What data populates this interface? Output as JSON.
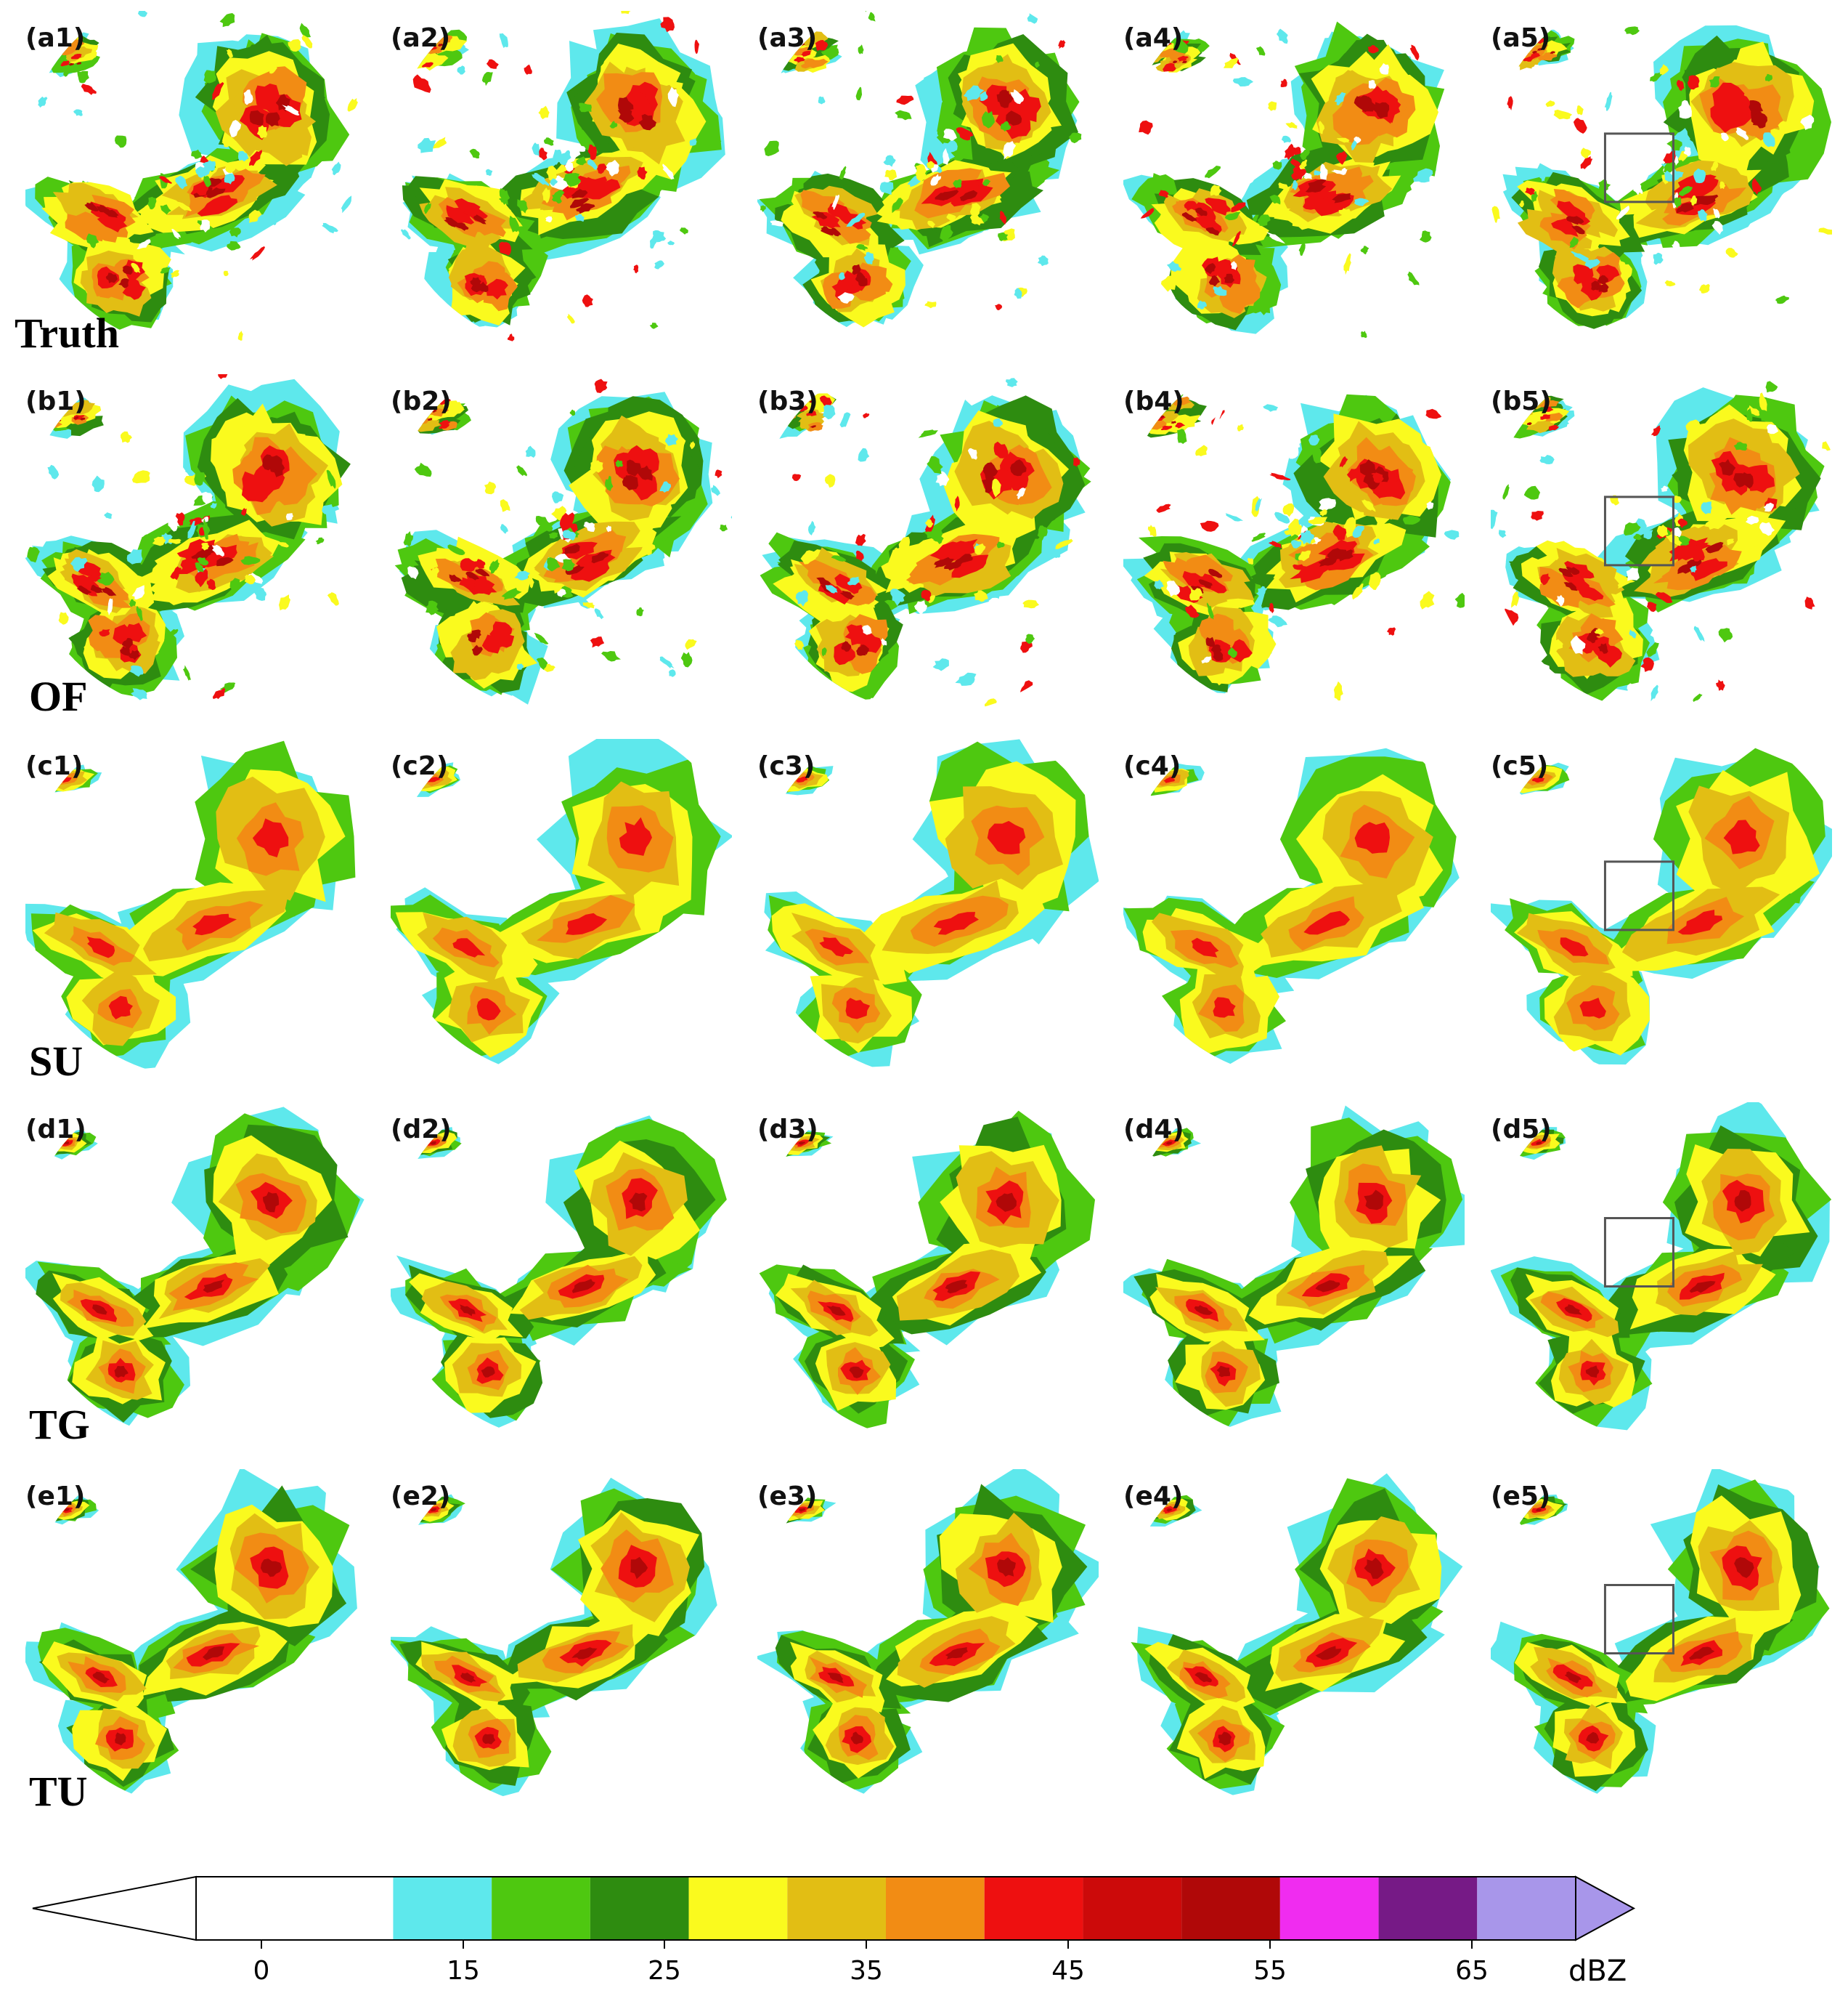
{
  "rows": [
    {
      "label": "Truth",
      "panels": [
        "(a1)",
        "(a2)",
        "(a3)",
        "(a4)",
        "(a5)"
      ]
    },
    {
      "label": "OF",
      "panels": [
        "(b1)",
        "(b2)",
        "(b3)",
        "(b4)",
        "(b5)"
      ]
    },
    {
      "label": "SU",
      "panels": [
        "(c1)",
        "(c2)",
        "(c3)",
        "(c4)",
        "(c5)"
      ]
    },
    {
      "label": "TG",
      "panels": [
        "(d1)",
        "(d2)",
        "(d3)",
        "(d4)",
        "(d5)"
      ]
    },
    {
      "label": "TU",
      "panels": [
        "(e1)",
        "(e2)",
        "(e3)",
        "(e4)",
        "(e5)"
      ]
    }
  ],
  "colorbar": {
    "unit": "dBZ",
    "tick_labels": [
      "0",
      "15",
      "25",
      "35",
      "45",
      "55",
      "65"
    ],
    "tick_values": [
      0,
      15,
      25,
      35,
      45,
      55,
      65
    ],
    "color_stops": [
      {
        "from": 0,
        "to": 10,
        "color": "#ffffff"
      },
      {
        "from": 10,
        "to": 15,
        "color": "#5ee8ec"
      },
      {
        "from": 15,
        "to": 20,
        "color": "#4ec810"
      },
      {
        "from": 20,
        "to": 25,
        "color": "#2e8c10"
      },
      {
        "from": 25,
        "to": 30,
        "color": "#fafa1e"
      },
      {
        "from": 30,
        "to": 35,
        "color": "#e2be14"
      },
      {
        "from": 35,
        "to": 40,
        "color": "#f28c14"
      },
      {
        "from": 40,
        "to": 45,
        "color": "#ee1010"
      },
      {
        "from": 45,
        "to": 50,
        "color": "#cc0a0a"
      },
      {
        "from": 50,
        "to": 55,
        "color": "#b00808"
      },
      {
        "from": 55,
        "to": 60,
        "color": "#f02cf0"
      },
      {
        "from": 60,
        "to": 65,
        "color": "#761a86"
      },
      {
        "from": 65,
        "to": 70,
        "color": "#a896ea"
      }
    ]
  },
  "highlight_box_panels": [
    "(a5)",
    "(b5)",
    "(c5)",
    "(d5)",
    "(e5)"
  ]
}
